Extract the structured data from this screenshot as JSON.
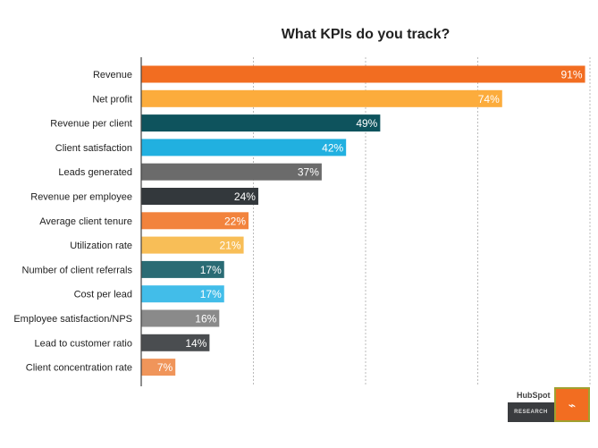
{
  "chart_data": {
    "type": "bar",
    "orientation": "horizontal",
    "title": "What KPIs do you track?",
    "xlabel": "",
    "ylabel": "",
    "xlim": [
      0,
      92
    ],
    "grid": true,
    "categories": [
      "Revenue",
      "Net profit",
      "Revenue per client",
      "Client satisfaction",
      "Leads generated",
      "Revenue per employee",
      "Average client tenure",
      "Utilization rate",
      "Number of client referrals",
      "Cost per lead",
      "Employee satisfaction/NPS",
      "Lead to customer ratio",
      "Client concentration rate"
    ],
    "values": [
      91,
      74,
      49,
      42,
      37,
      24,
      22,
      21,
      17,
      17,
      16,
      14,
      7
    ],
    "labels": [
      "91%",
      "74%",
      "49%",
      "42%",
      "37%",
      "24%",
      "22%",
      "21%",
      "17%",
      "17%",
      "16%",
      "14%",
      "7%"
    ],
    "colors": [
      "#f26d21",
      "#fcac3c",
      "#0e535d",
      "#21b0e0",
      "#6b6b6b",
      "#33383c",
      "#f2833d",
      "#f8be57",
      "#2a6b74",
      "#42bde9",
      "#8a8a8a",
      "#4a4d50",
      "#f0955a"
    ]
  },
  "logo": {
    "brand": "HubSpot",
    "tag": "RESEARCH",
    "icon": "clipboard-pulse-icon"
  }
}
